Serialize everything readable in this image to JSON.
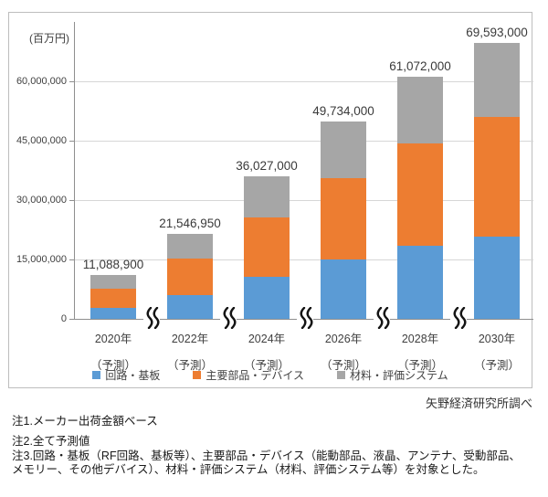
{
  "chart_data": {
    "type": "bar",
    "stacked": true,
    "unit_label": "(百万円)",
    "categories": [
      "2020年",
      "2022年",
      "2024年",
      "2026年",
      "2028年",
      "2030年"
    ],
    "category_suffix": "（予測）",
    "total_labels": [
      "11,088,900",
      "21,546,950",
      "36,027,000",
      "49,734,000",
      "61,072,000",
      "69,593,000"
    ],
    "totals": [
      11088900,
      21546950,
      36027000,
      49734000,
      61072000,
      69593000
    ],
    "series": [
      {
        "name": "回路・基板",
        "color": "#5B9BD5",
        "values": [
          2850000,
          6100000,
          10600000,
          15000000,
          18500000,
          20800000
        ]
      },
      {
        "name": "主要部品・デバイス",
        "color": "#ED7D31",
        "values": [
          4700000,
          9200000,
          15000000,
          20600000,
          25800000,
          30200000
        ]
      },
      {
        "name": "材料・評価システム",
        "color": "#A6A6A6",
        "values": [
          3538900,
          6246950,
          10427000,
          14134000,
          16772000,
          18593000
        ]
      }
    ],
    "series_values_estimated_from_pixels": true,
    "y_axis": {
      "ticks": [
        0,
        15000000,
        30000000,
        45000000,
        60000000
      ],
      "tick_labels": [
        "0",
        "15,000,000",
        "30,000,000",
        "45,000,000",
        "60,000,000"
      ],
      "max": 75000000
    },
    "grid": true,
    "legend_position": "bottom",
    "x_axis_breaks_between_categories": true
  },
  "source": "矢野経済研究所調べ",
  "notes": [
    "注1.メーカー出荷金額ベース",
    "注2.全て予測値",
    "注3.回路・基板（RF回路、基板等）、主要部品・デバイス（能動部品、液晶、アンテナ、受動部品、",
    "メモリー、その他デバイス）、材料・評価システム（材料、評価システム等）を対象とした。"
  ],
  "colors": {
    "bar_blue": "#5B9BD5",
    "bar_orange": "#ED7D31",
    "bar_gray": "#A6A6A6",
    "gridline": "#d6d6d6",
    "axis": "#8f8f8f"
  }
}
